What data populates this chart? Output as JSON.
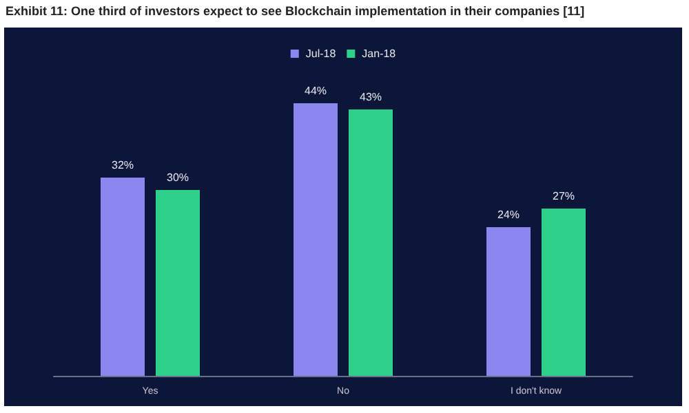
{
  "chart_data": {
    "type": "bar",
    "title": "Exhibit 11: One third of investors expect to see Blockchain implementation in their companies [11]",
    "categories": [
      "Yes",
      "No",
      "I don't know"
    ],
    "series": [
      {
        "name": "Jul-18",
        "color": "#8b87f0",
        "values": [
          32,
          44,
          24
        ],
        "value_labels": [
          "32%",
          "44%",
          "24%"
        ]
      },
      {
        "name": "Jan-18",
        "color": "#2fd18a",
        "values": [
          30,
          43,
          27
        ],
        "value_labels": [
          "30%",
          "43%",
          "27%"
        ]
      }
    ],
    "legend": "top"
  }
}
